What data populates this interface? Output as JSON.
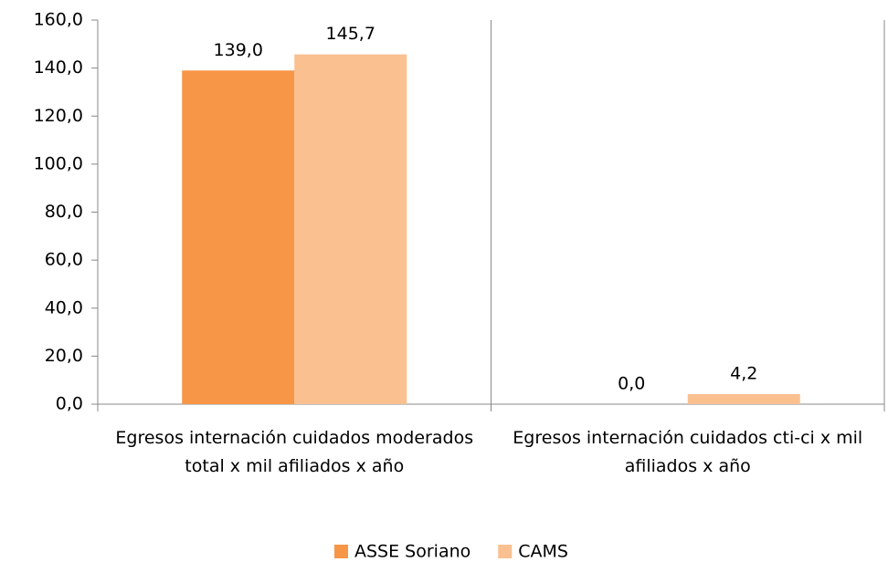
{
  "chart_data": {
    "type": "bar",
    "categories": [
      "Egresos internación cuidados moderados total x mil afiliados x año",
      "Egresos internación cuidados cti-ci x mil afiliados x año"
    ],
    "series": [
      {
        "name": "ASSE Soriano",
        "color": "#f79646",
        "values": [
          139.0,
          0.0
        ],
        "value_labels": [
          "139,0",
          "0,0"
        ]
      },
      {
        "name": "CAMS",
        "color": "#fac090",
        "values": [
          145.7,
          4.2
        ],
        "value_labels": [
          "145,7",
          "4,2"
        ]
      }
    ],
    "ylim": [
      0,
      160
    ],
    "yticks": [
      {
        "value": 0,
        "label": "0,0"
      },
      {
        "value": 20,
        "label": "20,0"
      },
      {
        "value": 40,
        "label": "40,0"
      },
      {
        "value": 60,
        "label": "60,0"
      },
      {
        "value": 80,
        "label": "80,0"
      },
      {
        "value": 100,
        "label": "100,0"
      },
      {
        "value": 120,
        "label": "120,0"
      },
      {
        "value": 140,
        "label": "140,0"
      },
      {
        "value": 160,
        "label": "160,0"
      }
    ],
    "legend": "bottom"
  }
}
